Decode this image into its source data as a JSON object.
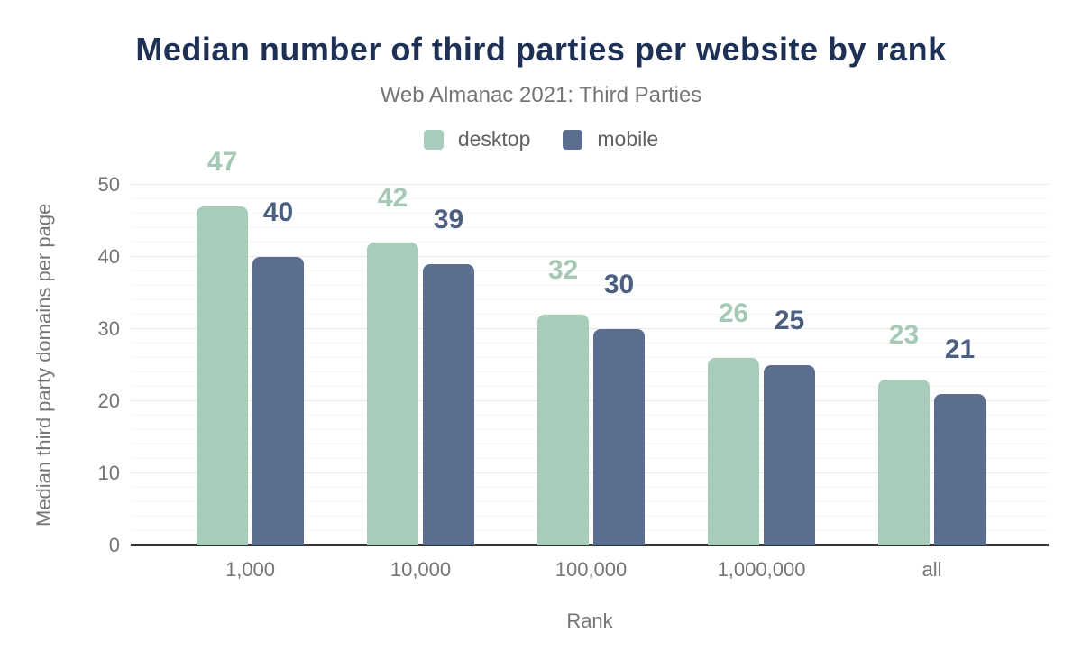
{
  "chart_data": {
    "type": "bar",
    "title": "Median number of third parties per website by rank",
    "subtitle": "Web Almanac 2021: Third Parties",
    "categories": [
      "1,000",
      "10,000",
      "100,000",
      "1,000,000",
      "all"
    ],
    "series": [
      {
        "name": "desktop",
        "values": [
          47,
          42,
          32,
          26,
          23
        ],
        "color": "#a8ccba",
        "label_color": "#a5c9b5"
      },
      {
        "name": "mobile",
        "values": [
          40,
          39,
          30,
          25,
          21
        ],
        "color": "#5c6e90",
        "label_color": "#4d5f80"
      }
    ],
    "xlabel": "Rank",
    "ylabel": "Median third party domains per page",
    "ylim": [
      0,
      50
    ],
    "yticks": [
      "0",
      "10",
      "20",
      "30",
      "40",
      "50"
    ],
    "ytick_step": 10,
    "minor_grid_step": 2,
    "grid": "on",
    "legend_position": "top",
    "data_labels": "above-bars"
  },
  "colors": {
    "background": "#ffffff",
    "title": "#1e3054",
    "axis_text": "#757575",
    "legend_text": "#616161",
    "axis_line": "#333333",
    "grid_major": "#e7e7e7",
    "grid_minor": "#f5f5f5"
  }
}
